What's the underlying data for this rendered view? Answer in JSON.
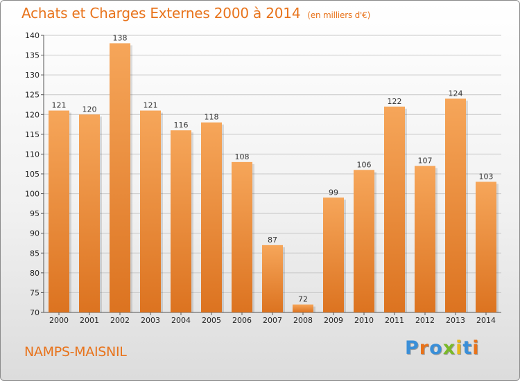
{
  "header": {
    "title": "Achats et Charges Externes 2000 à 2014",
    "subtitle": "(en milliers d'€)"
  },
  "footer": {
    "commune": "NAMPS-MAISNIL",
    "logo_text": "Proxiti",
    "logo_letters": [
      {
        "ch": "P",
        "color": "#3a8fd8"
      },
      {
        "ch": "r",
        "color": "#e8731b"
      },
      {
        "ch": "o",
        "color": "#3a8fd8"
      },
      {
        "ch": "x",
        "color": "#7ab929"
      },
      {
        "ch": "i",
        "color": "#e8b81b"
      },
      {
        "ch": "t",
        "color": "#3a8fd8"
      },
      {
        "ch": "i",
        "color": "#e8731b"
      }
    ]
  },
  "colors": {
    "accent": "#e8731b",
    "bar_light": "#f6a65a",
    "bar_dark": "#dc7320",
    "grid": "#c8c8c8"
  },
  "chart_data": {
    "type": "bar",
    "title": "Achats et Charges Externes 2000 à 2014",
    "subtitle": "(en milliers d'€)",
    "categories": [
      "2000",
      "2001",
      "2002",
      "2003",
      "2004",
      "2005",
      "2006",
      "2007",
      "2008",
      "2009",
      "2010",
      "2011",
      "2012",
      "2013",
      "2014"
    ],
    "values": [
      121,
      120,
      138,
      121,
      116,
      118,
      108,
      87,
      72,
      99,
      106,
      122,
      107,
      124,
      103
    ],
    "ylim": [
      70,
      140
    ],
    "yticks": [
      70,
      75,
      80,
      85,
      90,
      95,
      100,
      105,
      110,
      115,
      120,
      125,
      130,
      135,
      140
    ],
    "grid": true,
    "data_labels": true
  }
}
